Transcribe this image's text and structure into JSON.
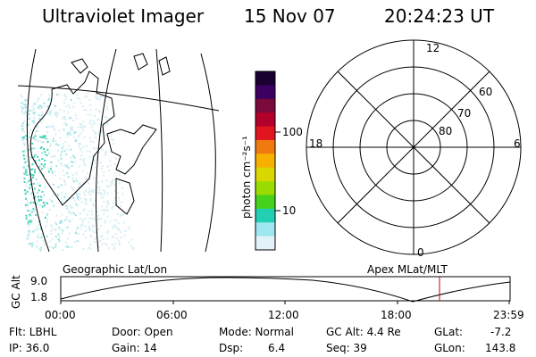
{
  "header": {
    "instrument": "Ultraviolet Imager",
    "date": "15 Nov 07",
    "time": "20:24:23 UT"
  },
  "colorbar": {
    "unit_label": "photon cm⁻²s⁻¹",
    "ticks": [
      "100",
      "10"
    ],
    "colors": [
      "#1a0030",
      "#3b0060",
      "#7a0a3a",
      "#b3002a",
      "#e0151f",
      "#f07a10",
      "#f7b000",
      "#d8d800",
      "#9bdc00",
      "#46d21a",
      "#22cfb2",
      "#9fe7f0",
      "#e2f2f7"
    ]
  },
  "polar_plot": {
    "top_label": "12",
    "bottom_label": "0",
    "left_label": "18",
    "right_label": "6",
    "lat_labels": [
      "60",
      "70",
      "80"
    ]
  },
  "timeline": {
    "left_caption": "Geographic Lat/Lon",
    "right_caption": "Apex MLat/MLT",
    "y_axis_label": "GC Alt",
    "y_top": "9.0",
    "y_bottom": "1.8",
    "x_ticks": [
      "00:00",
      "06:00",
      "12:00",
      "18:00",
      "23:59"
    ],
    "marker_color": "#cc0000"
  },
  "status": {
    "filter": "Flt: LBHL",
    "ip": "IP: 36.0",
    "door": "Door: Open",
    "gain": "Gain: 14",
    "mode": "Mode: Normal",
    "dsp_label": "Dsp:",
    "dsp_value": "6.4",
    "gc_alt": "GC Alt: 4.4 Re",
    "seq": "Seq: 39",
    "glat_label": "GLat:",
    "glat_value": "-7.2",
    "glon_label": "GLon:",
    "glon_value": "143.8"
  }
}
